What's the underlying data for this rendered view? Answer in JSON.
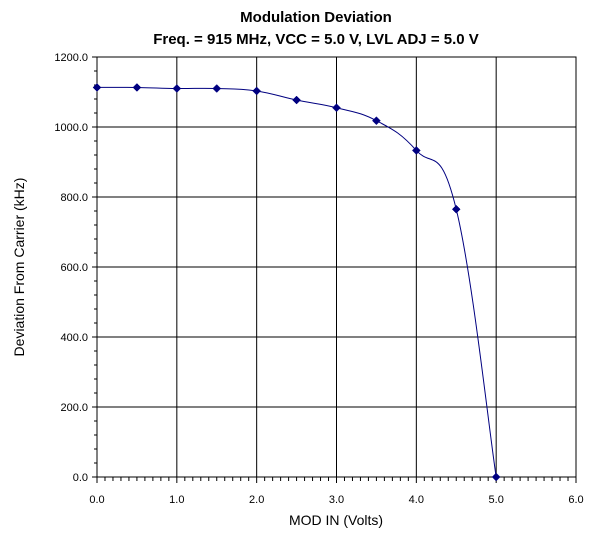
{
  "chart_data": {
    "type": "line",
    "title": "Modulation Deviation",
    "subtitle": "Freq. = 915 MHz, VCC = 5.0 V, LVL ADJ = 5.0 V",
    "xlabel": "MOD IN (Volts)",
    "ylabel": "Deviation From Carrier (kHz)",
    "xlim": [
      0,
      6
    ],
    "ylim": [
      0,
      1200
    ],
    "x_ticks": [
      "0.0",
      "1.0",
      "2.0",
      "3.0",
      "4.0",
      "5.0",
      "6.0"
    ],
    "y_ticks": [
      "0.0",
      "200.0",
      "400.0",
      "600.0",
      "800.0",
      "1000.0",
      "1200.0"
    ],
    "grid": true,
    "legend": "none",
    "series": [
      {
        "color": "#000080",
        "marker": "diamond",
        "x": [
          0.0,
          0.5,
          1.0,
          1.5,
          2.0,
          2.5,
          3.0,
          3.5,
          4.0,
          4.5,
          5.0
        ],
        "y": [
          1113,
          1113,
          1110,
          1110,
          1103,
          1077,
          1055,
          1018,
          933,
          765,
          0
        ]
      }
    ]
  }
}
